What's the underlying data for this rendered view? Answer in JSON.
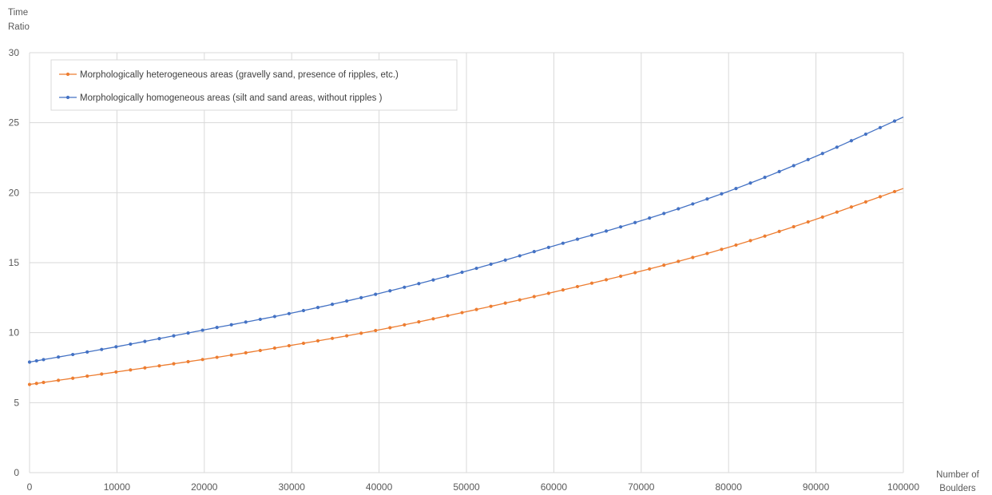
{
  "chart_data": {
    "type": "line",
    "title": "",
    "ylabel_lines": [
      "Time",
      "Ratio"
    ],
    "xlabel_lines": [
      "Number of",
      "Boulders"
    ],
    "xlim": [
      0,
      100000
    ],
    "ylim": [
      0,
      30
    ],
    "x_ticks": [
      0,
      10000,
      20000,
      30000,
      40000,
      50000,
      60000,
      70000,
      80000,
      90000,
      100000
    ],
    "y_ticks": [
      0,
      5,
      10,
      15,
      20,
      25,
      30
    ],
    "grid": true,
    "legend_placement": "top-left",
    "x": [
      0,
      10000,
      20000,
      30000,
      40000,
      50000,
      60000,
      70000,
      80000,
      90000,
      100000
    ],
    "series": [
      {
        "name": "Morphologically heterogeneous areas (gravelly sand, presence of ripples, etc.)",
        "color": "#ed7d31",
        "marker": "circle",
        "values": [
          6.3,
          7.2,
          8.1,
          9.1,
          10.2,
          11.5,
          12.9,
          14.4,
          16.1,
          18.1,
          20.3
        ]
      },
      {
        "name": "Morphologically homogeneous areas (silt and sand areas, without ripples )",
        "color": "#4472c4",
        "marker": "circle",
        "values": [
          7.9,
          9.0,
          10.2,
          11.4,
          12.8,
          14.4,
          16.2,
          18.0,
          20.1,
          22.6,
          25.4
        ]
      }
    ]
  }
}
